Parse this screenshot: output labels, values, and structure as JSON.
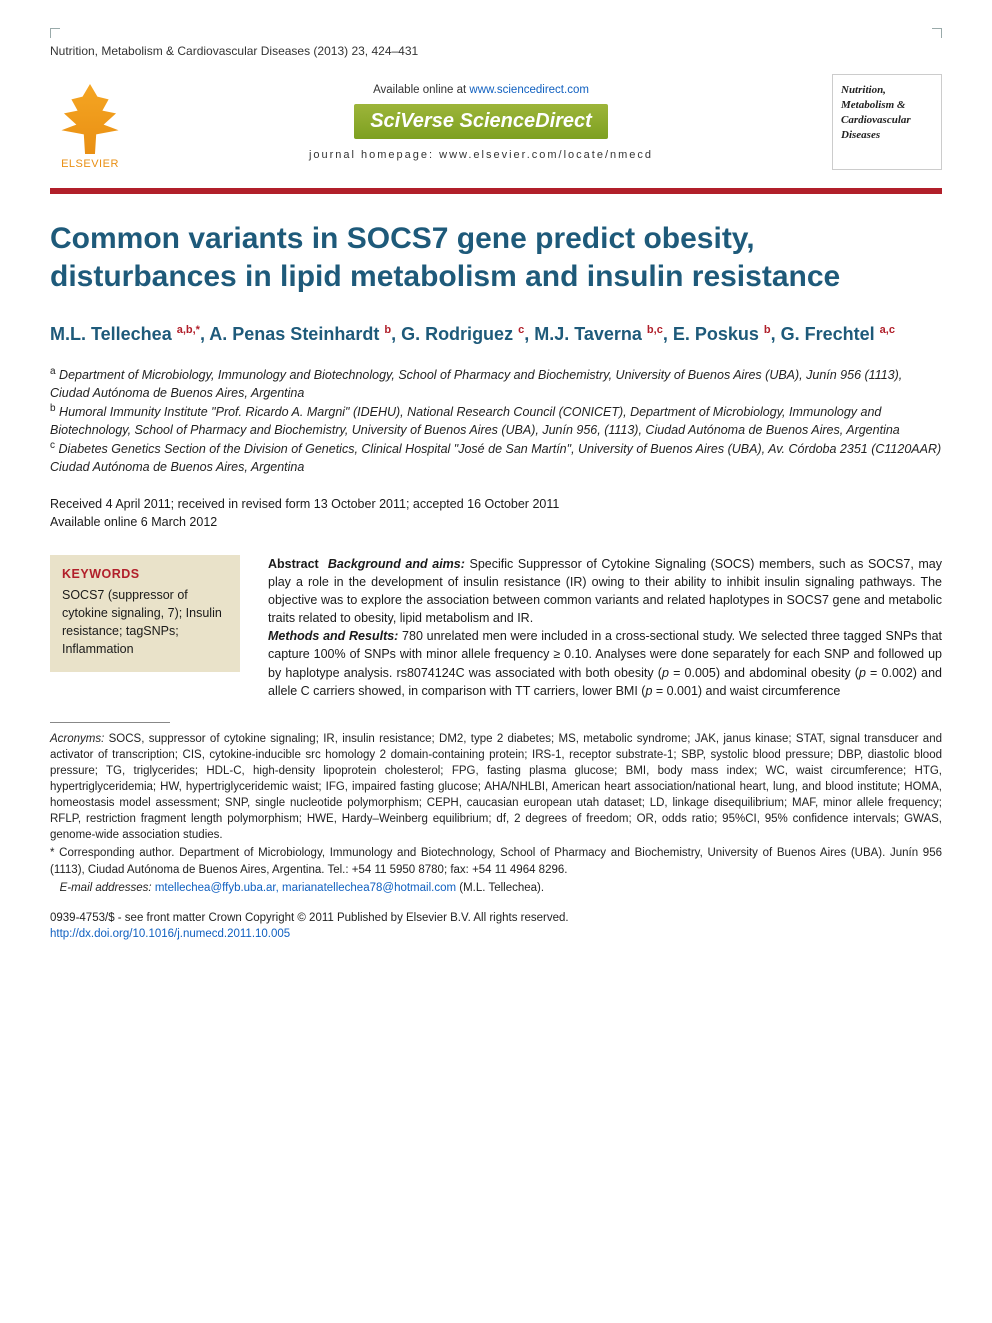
{
  "running_head": "Nutrition, Metabolism & Cardiovascular Diseases (2013) 23, 424–431",
  "header": {
    "available_prefix": "Available online at ",
    "available_url": "www.sciencedirect.com",
    "sciverse": "SciVerse ScienceDirect",
    "homepage_label": "journal homepage: www.elsevier.com/locate/nmecd",
    "elsevier_word": "ELSEVIER",
    "journal_thumb_lines": [
      "Nutrition,",
      "Metabolism &",
      "Cardiovascular",
      "Diseases"
    ]
  },
  "theme": {
    "title_color": "#1e5a7a",
    "accent_red": "#b11f2a",
    "kw_bg": "#e9e2c9",
    "rule_color": "#b11f2a"
  },
  "title": "Common variants in SOCS7 gene predict obesity, disturbances in lipid metabolism and insulin resistance",
  "authors_html": "M.L. Tellechea <sup>a,b,*</sup>, A. Penas Steinhardt <sup>b</sup>, G. Rodriguez <sup>c</sup>, M.J. Taverna <sup>b,c</sup>, E. Poskus <sup>b</sup>, G. Frechtel <sup>a,c</sup>",
  "affiliations": [
    {
      "sup": "a",
      "text": "Department of Microbiology, Immunology and Biotechnology, School of Pharmacy and Biochemistry, University of Buenos Aires (UBA), Junín 956 (1113), Ciudad Autónoma de Buenos Aires, Argentina"
    },
    {
      "sup": "b",
      "text": "Humoral Immunity Institute \"Prof. Ricardo A. Margni\" (IDEHU), National Research Council (CONICET), Department of Microbiology, Immunology and Biotechnology, School of Pharmacy and Biochemistry, University of Buenos Aires (UBA), Junín 956, (1113), Ciudad Autónoma de Buenos Aires, Argentina"
    },
    {
      "sup": "c",
      "text": "Diabetes Genetics Section of the Division of Genetics, Clinical Hospital \"José de San Martín\", University of Buenos Aires (UBA), Av. Córdoba 2351 (C1120AAR) Ciudad Autónoma de Buenos Aires, Argentina"
    }
  ],
  "dates": {
    "line1": "Received 4 April 2011; received in revised form 13 October 2011; accepted 16 October 2011",
    "line2": "Available online 6 March 2012"
  },
  "keywords": {
    "heading": "KEYWORDS",
    "body": "SOCS7 (suppressor of cytokine signaling, 7); Insulin resistance; tagSNPs; Inflammation"
  },
  "abstract": {
    "label": "Abstract",
    "sections": [
      {
        "head": "Background and aims:",
        "text": "Specific Suppressor of Cytokine Signaling (SOCS) members, such as SOCS7, may play a role in the development of insulin resistance (IR) owing to their ability to inhibit insulin signaling pathways. The objective was to explore the association between common variants and related haplotypes in SOCS7 gene and metabolic traits related to obesity, lipid metabolism and IR."
      },
      {
        "head": "Methods and Results:",
        "text": "780 unrelated men were included in a cross-sectional study. We selected three tagged SNPs that capture 100% of SNPs with minor allele frequency ≥ 0.10. Analyses were done separately for each SNP and followed up by haplotype analysis. rs8074124C was associated with both obesity (p = 0.005) and abdominal obesity (p = 0.002) and allele C carriers showed, in comparison with TT carriers, lower BMI (p = 0.001) and waist circumference"
      }
    ]
  },
  "footnotes": {
    "acronyms_label": "Acronyms:",
    "acronyms_text": "SOCS, suppressor of cytokine signaling; IR, insulin resistance; DM2, type 2 diabetes; MS, metabolic syndrome; JAK, janus kinase; STAT, signal transducer and activator of transcription; CIS, cytokine-inducible src homology 2 domain-containing protein; IRS-1, receptor substrate-1; SBP, systolic blood pressure; DBP, diastolic blood pressure; TG, triglycerides; HDL-C, high-density lipoprotein cholesterol; FPG, fasting plasma glucose; BMI, body mass index; WC, waist circumference; HTG, hypertriglyceridemia; HW, hypertriglyceridemic waist; IFG, impaired fasting glucose; AHA/NHLBI, American heart association/national heart, lung, and blood institute; HOMA, homeostasis model assessment; SNP, single nucleotide polymorphism; CEPH, caucasian european utah dataset; LD, linkage disequilibrium; MAF, minor allele frequency; RFLP, restriction fragment length polymorphism; HWE, Hardy–Weinberg equilibrium; df, 2 degrees of freedom; OR, odds ratio; 95%CI, 95% confidence intervals; GWAS, genome-wide association studies.",
    "corresponding": "* Corresponding author. Department of Microbiology, Immunology and Biotechnology, School of Pharmacy and Biochemistry, University of Buenos Aires (UBA). Junín 956 (1113), Ciudad Autónoma de Buenos Aires, Argentina. Tel.: +54 11 5950 8780; fax: +54 11 4964 8296.",
    "email_label": "E-mail addresses:",
    "emails": "mtellechea@ffyb.uba.ar, marianatellechea78@hotmail.com",
    "email_paren": "(M.L. Tellechea)."
  },
  "copyright": {
    "line1": "0939-4753/$ - see front matter Crown Copyright © 2011 Published by Elsevier B.V. All rights reserved.",
    "doi": "http://dx.doi.org/10.1016/j.numecd.2011.10.005"
  }
}
